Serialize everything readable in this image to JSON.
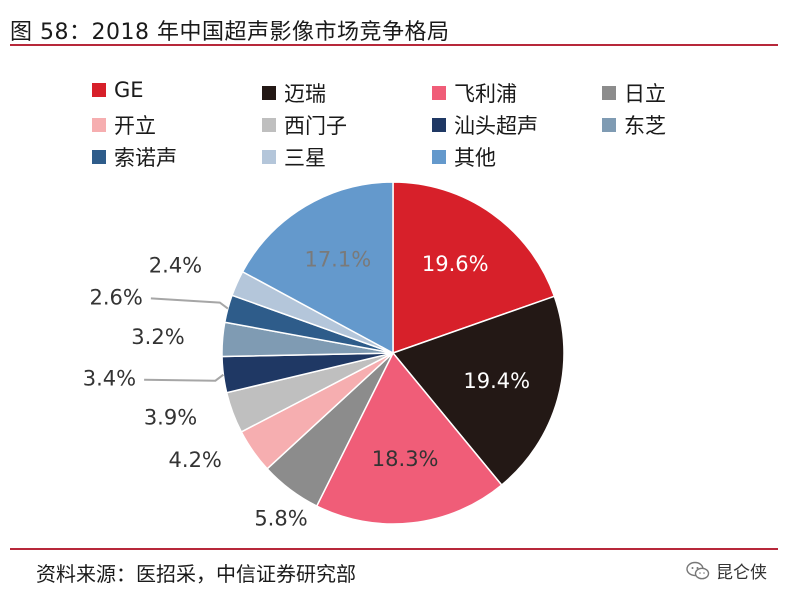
{
  "header": {
    "title": "图 58：2018 年中国超声影像市场竞争格局"
  },
  "chart_data": {
    "type": "pie",
    "categories": [
      "GE",
      "迈瑞",
      "飞利浦",
      "日立",
      "开立",
      "西门子",
      "汕头超声",
      "东芝",
      "索诺声",
      "三星",
      "其他"
    ],
    "values": [
      19.6,
      19.4,
      18.3,
      5.8,
      4.2,
      3.9,
      3.4,
      3.2,
      2.6,
      2.4,
      17.1
    ],
    "data_labels": [
      "19.6%",
      "19.4%",
      "18.3%",
      "5.8%",
      "4.2%",
      "3.9%",
      "3.4%",
      "3.2%",
      "2.6%",
      "2.4%",
      "17.1%"
    ],
    "colors": [
      "#d7202a",
      "#231815",
      "#f05d78",
      "#8c8c8c",
      "#f6aeb0",
      "#bfbfbf",
      "#1f3864",
      "#7f9bb3",
      "#2e5c8a",
      "#b4c6da",
      "#6499cc"
    ],
    "label_colors": [
      "#ffffff",
      "#ffffff",
      "#333333",
      "#333333",
      "#333333",
      "#333333",
      "#333333",
      "#333333",
      "#333333",
      "#333333",
      "#7a7a7a"
    ],
    "legend_position": "top",
    "start_angle_deg": 0,
    "direction": "clockwise"
  },
  "footer": {
    "source": "资料来源：医招采，中信证券研究部",
    "brand": "昆仑侠",
    "brand_icon": "wechat-icon"
  }
}
